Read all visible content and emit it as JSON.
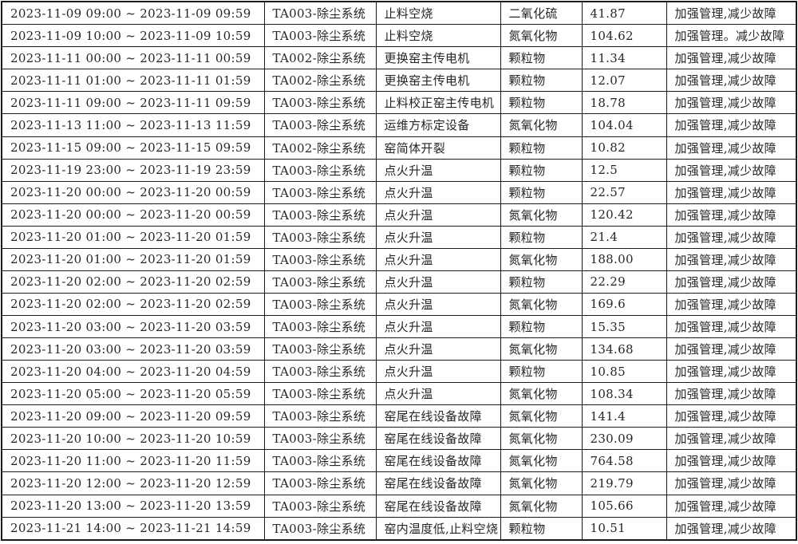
{
  "page": {
    "background_color": "#ffffff",
    "text_color": "#262626",
    "border_color": "#1a1a1a"
  },
  "table": {
    "field_order": [
      "time_range",
      "system",
      "action",
      "pollutant",
      "value",
      "note"
    ],
    "rows": [
      {
        "time_range": "2023-11-09 09:00 ~ 2023-11-09 09:59",
        "system": "TA003-除尘系统",
        "action": "止料空烧",
        "pollutant": "二氧化硫",
        "value": "41.87",
        "note": "加强管理,减少故障"
      },
      {
        "time_range": "2023-11-09 10:00 ~ 2023-11-09 10:59",
        "system": "TA003-除尘系统",
        "action": "止料空烧",
        "pollutant": "氮氧化物",
        "value": "104.62",
        "note": "加强管理。减少故障"
      },
      {
        "time_range": "2023-11-11 00:00 ~ 2023-11-11 00:59",
        "system": "TA002-除尘系统",
        "action": "更换窑主传电机",
        "pollutant": "颗粒物",
        "value": "11.34",
        "note": "加强管理,减少故障"
      },
      {
        "time_range": "2023-11-11 01:00 ~ 2023-11-11 01:59",
        "system": "TA002-除尘系统",
        "action": "更换窑主传电机",
        "pollutant": "颗粒物",
        "value": "12.07",
        "note": "加强管理,减少故障"
      },
      {
        "time_range": "2023-11-11 09:00 ~ 2023-11-11 09:59",
        "system": "TA003-除尘系统",
        "action": "止料校正窑主传电机",
        "pollutant": "颗粒物",
        "value": "18.78",
        "note": "加强管理,减少故障"
      },
      {
        "time_range": "2023-11-13 11:00 ~ 2023-11-13 11:59",
        "system": "TA003-除尘系统",
        "action": "运维方标定设备",
        "pollutant": "氮氧化物",
        "value": "104.04",
        "note": "加强管理,减少故障"
      },
      {
        "time_range": "2023-11-15 09:00 ~ 2023-11-15 09:59",
        "system": "TA002-除尘系统",
        "action": "窑简体开裂",
        "pollutant": "颗粒物",
        "value": "10.82",
        "note": "加强管理,减少故障"
      },
      {
        "time_range": "2023-11-19 23:00 ~ 2023-11-19 23:59",
        "system": "TA003-除尘系统",
        "action": "点火升温",
        "pollutant": "颗粒物",
        "value": "12.5",
        "note": "加强管理,减少故障"
      },
      {
        "time_range": "2023-11-20 00:00 ~ 2023-11-20 00:59",
        "system": "TA003-除尘系统",
        "action": "点火升温",
        "pollutant": "颗粒物",
        "value": "22.57",
        "note": "加强管理,减少故障"
      },
      {
        "time_range": "2023-11-20 00:00 ~ 2023-11-20 00:59",
        "system": "TA003-除尘系统",
        "action": "点火升温",
        "pollutant": "氮氧化物",
        "value": "120.42",
        "note": "加强管理,减少故障"
      },
      {
        "time_range": "2023-11-20 01:00 ~ 2023-11-20 01:59",
        "system": "TA003-除尘系统",
        "action": "点火升温",
        "pollutant": "颗粒物",
        "value": "21.4",
        "note": "加强管理,减少故障"
      },
      {
        "time_range": "2023-11-20 01:00 ~ 2023-11-20 01:59",
        "system": "TA003-除尘系统",
        "action": "点火升温",
        "pollutant": "氮氧化物",
        "value": "188.00",
        "note": "加强管理,减少故障"
      },
      {
        "time_range": "2023-11-20 02:00 ~ 2023-11-20 02:59",
        "system": "TA003-除尘系统",
        "action": "点火升温",
        "pollutant": "颗粒物",
        "value": "22.29",
        "note": "加强管理,减少故障"
      },
      {
        "time_range": "2023-11-20 02:00 ~ 2023-11-20 02:59",
        "system": "TA003-除尘系统",
        "action": "点火升温",
        "pollutant": "氮氧化物",
        "value": "169.6",
        "note": "加强管理,减少故障"
      },
      {
        "time_range": "2023-11-20 03:00 ~ 2023-11-20 03:59",
        "system": "TA003-除尘系统",
        "action": "点火升温",
        "pollutant": "颗粒物",
        "value": "15.35",
        "note": "加强管理,减少故障"
      },
      {
        "time_range": "2023-11-20 03:00 ~ 2023-11-20 03:59",
        "system": "TA003-除尘系统",
        "action": "点火升温",
        "pollutant": "氮氧化物",
        "value": "134.68",
        "note": "加强管理,减少故障"
      },
      {
        "time_range": "2023-11-20 04:00 ~ 2023-11-20 04:59",
        "system": "TA003-除尘系统",
        "action": "点火升温",
        "pollutant": "颗粒物",
        "value": "10.85",
        "note": "加强管理,减少故障"
      },
      {
        "time_range": "2023-11-20 05:00 ~ 2023-11-20 05:59",
        "system": "TA003-除尘系统",
        "action": "点火升温",
        "pollutant": "氮氧化物",
        "value": "108.34",
        "note": "加强管理,减少故障"
      },
      {
        "time_range": "2023-11-20 09:00 ~ 2023-11-20 09:59",
        "system": "TA003-除尘系统",
        "action": "窑尾在线设备故障",
        "pollutant": "氮氧化物",
        "value": "141.4",
        "note": "加强管理,减少故障"
      },
      {
        "time_range": "2023-11-20 10:00 ~ 2023-11-20 10:59",
        "system": "TA003-除尘系统",
        "action": "窑尾在线设备故障",
        "pollutant": "氮氧化物",
        "value": "230.09",
        "note": "加强管理,减少故障"
      },
      {
        "time_range": "2023-11-20 11:00 ~ 2023-11-20 11:59",
        "system": "TA003-除尘系统",
        "action": "窑尾在线设备故障",
        "pollutant": "氮氧化物",
        "value": "764.58",
        "note": "加强管理,减少故障"
      },
      {
        "time_range": "2023-11-20 12:00 ~ 2023-11-20 12:59",
        "system": "TA003-除尘系统",
        "action": "窑尾在线设备故障",
        "pollutant": "氮氧化物",
        "value": "219.79",
        "note": "加强管理,减少故障"
      },
      {
        "time_range": "2023-11-20 13:00 ~ 2023-11-20 13:59",
        "system": "TA003-除尘系统",
        "action": "窑尾在线设备故障",
        "pollutant": "氮氧化物",
        "value": "105.66",
        "note": "加强管理,减少故障"
      },
      {
        "time_range": "2023-11-21 14:00 ~ 2023-11-21 14:59",
        "system": "TA003-除尘系统",
        "action": "窑内温度低,止料空烧",
        "pollutant": "颗粒物",
        "value": "10.51",
        "note": "加强管理,减少故障"
      }
    ]
  }
}
